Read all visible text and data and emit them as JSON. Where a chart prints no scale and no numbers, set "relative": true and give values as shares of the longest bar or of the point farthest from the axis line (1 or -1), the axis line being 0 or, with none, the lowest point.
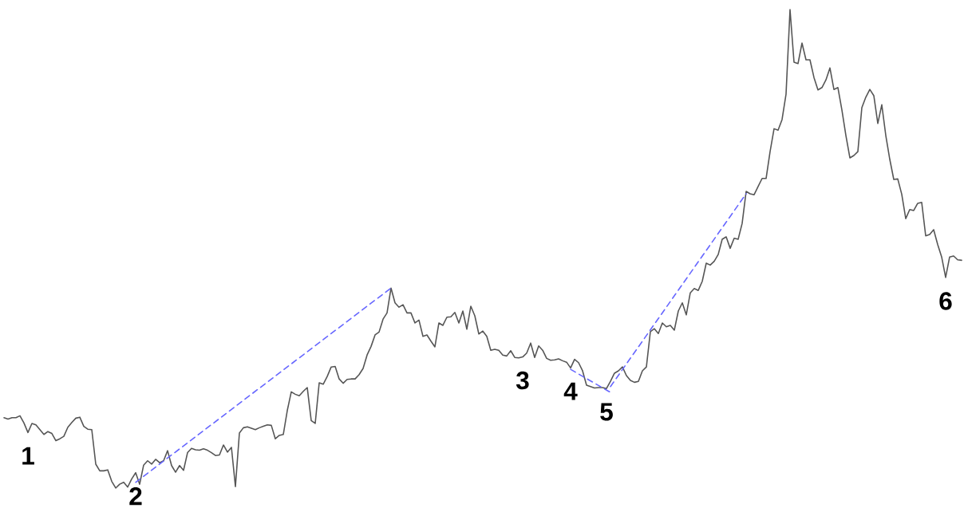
{
  "chart_data": {
    "type": "line",
    "relative": true,
    "categories": [
      null,
      null,
      null,
      null,
      null,
      null,
      null,
      null,
      null,
      null,
      null,
      null,
      null,
      null,
      null,
      null,
      null,
      null,
      null,
      null,
      null,
      null,
      null,
      null,
      null,
      null,
      null,
      null,
      null,
      null,
      null,
      null,
      null,
      null,
      null,
      null,
      null,
      null,
      null,
      null,
      null,
      null,
      null,
      null,
      null,
      null,
      null,
      null,
      null,
      null,
      null,
      null,
      null,
      null,
      null,
      null,
      null,
      null,
      null,
      null,
      null,
      null,
      null,
      null,
      null,
      null,
      null,
      null,
      null,
      null,
      null,
      null,
      null,
      null,
      null,
      null,
      null,
      null,
      null,
      null,
      null,
      null,
      null,
      null,
      null,
      null,
      null,
      null,
      null,
      null,
      null,
      null,
      null,
      null,
      null,
      null,
      null,
      null,
      null,
      null,
      null,
      null,
      null,
      null,
      null,
      null,
      null,
      null,
      null,
      null,
      null,
      null,
      null,
      null,
      null,
      null,
      null,
      null,
      null,
      null,
      null,
      null,
      null,
      null,
      null,
      null,
      null,
      null,
      null,
      null,
      null,
      null,
      null,
      null,
      null,
      null,
      null,
      null,
      null,
      null,
      null,
      null,
      null,
      null,
      null,
      null,
      null,
      null,
      null,
      null,
      null,
      null,
      null,
      null,
      null,
      null,
      null,
      null,
      null,
      null,
      null,
      null,
      null,
      null,
      null,
      null,
      null,
      null,
      null,
      null,
      null,
      null,
      null,
      null,
      null,
      null,
      null,
      null,
      null,
      null,
      null,
      null,
      null,
      null,
      null,
      null,
      null,
      null,
      null,
      null,
      null,
      null,
      null,
      null,
      null,
      null,
      null,
      null,
      null,
      null,
      null,
      null,
      null,
      null,
      null,
      null,
      null,
      null,
      null,
      null,
      null,
      null,
      null,
      null,
      null,
      null,
      null,
      null,
      null,
      null,
      null,
      null,
      null,
      null,
      null,
      null,
      null,
      null,
      null,
      null,
      null,
      null,
      null,
      null,
      null,
      null,
      null,
      null,
      null,
      null,
      null
    ],
    "series": [
      {
        "color": "#555555",
        "values": [
          0.147,
          0.144,
          0.147,
          0.147,
          0.151,
          0.136,
          0.116,
          0.135,
          0.132,
          0.122,
          0.112,
          0.118,
          0.114,
          0.099,
          0.103,
          0.108,
          0.127,
          0.137,
          0.146,
          0.148,
          0.129,
          0.123,
          0.122,
          0.05,
          0.036,
          0.036,
          0.038,
          0.014,
          0.0,
          0.008,
          0.012,
          0.002,
          0.019,
          0.032,
          0.008,
          0.048,
          0.057,
          0.05,
          0.06,
          0.053,
          0.057,
          0.078,
          0.047,
          0.033,
          0.047,
          0.037,
          0.074,
          0.083,
          0.08,
          0.079,
          0.082,
          0.079,
          0.074,
          0.068,
          0.069,
          0.09,
          0.075,
          0.085,
          0.003,
          0.115,
          0.126,
          0.128,
          0.125,
          0.122,
          0.126,
          0.129,
          0.132,
          0.131,
          0.103,
          0.11,
          0.112,
          0.162,
          0.201,
          0.196,
          0.193,
          0.202,
          0.21,
          0.141,
          0.135,
          0.22,
          0.217,
          0.233,
          0.253,
          0.254,
          0.228,
          0.219,
          0.227,
          0.228,
          0.228,
          0.237,
          0.25,
          0.278,
          0.296,
          0.32,
          0.326,
          0.353,
          0.366,
          0.418,
          0.387,
          0.378,
          0.383,
          0.366,
          0.366,
          0.345,
          0.351,
          0.317,
          0.32,
          0.307,
          0.295,
          0.345,
          0.34,
          0.357,
          0.358,
          0.367,
          0.345,
          0.37,
          0.332,
          0.38,
          0.36,
          0.322,
          0.328,
          0.317,
          0.288,
          0.29,
          0.288,
          0.278,
          0.276,
          0.287,
          0.273,
          0.272,
          0.274,
          0.282,
          0.303,
          0.273,
          0.297,
          0.288,
          0.271,
          0.267,
          0.268,
          0.27,
          0.266,
          0.263,
          0.251,
          0.269,
          0.262,
          0.245,
          0.215,
          0.212,
          0.209,
          0.21,
          0.21,
          0.208,
          0.223,
          0.24,
          0.245,
          0.253,
          0.235,
          0.225,
          0.221,
          0.223,
          0.245,
          0.253,
          0.327,
          0.333,
          0.323,
          0.345,
          0.337,
          0.34,
          0.33,
          0.37,
          0.387,
          0.362,
          0.408,
          0.417,
          0.413,
          0.432,
          0.47,
          0.466,
          0.474,
          0.488,
          0.52,
          0.525,
          0.501,
          0.522,
          0.52,
          0.553,
          0.62,
          0.615,
          0.613,
          0.63,
          0.647,
          0.647,
          0.703,
          0.751,
          0.748,
          0.77,
          0.823,
          1.0,
          0.89,
          0.887,
          0.93,
          0.895,
          0.895,
          0.858,
          0.832,
          0.837,
          0.853,
          0.878,
          0.833,
          0.837,
          0.79,
          0.737,
          0.69,
          0.695,
          0.703,
          0.795,
          0.817,
          0.833,
          0.82,
          0.762,
          0.801,
          0.737,
          0.687,
          0.645,
          0.646,
          0.614,
          0.563,
          0.582,
          0.58,
          0.595,
          0.597,
          0.527,
          0.53,
          0.54,
          0.509,
          0.483,
          0.44,
          0.483,
          0.485,
          0.477,
          0.476
        ]
      },
      {
        "type": "line",
        "color": "#6666ff",
        "line_style": "dashed",
        "values": [
          null,
          null,
          null,
          null,
          null,
          null,
          null,
          null,
          null,
          null,
          null,
          null,
          null,
          null,
          null,
          null,
          null,
          null,
          null,
          null,
          null,
          null,
          null,
          null,
          null,
          null,
          null,
          null,
          null,
          null,
          null,
          null,
          null,
          0.012,
          null,
          null,
          null,
          null,
          null,
          null,
          null,
          null,
          null,
          null,
          null,
          null,
          null,
          null,
          null,
          null,
          null,
          null,
          null,
          null,
          null,
          null,
          null,
          null,
          null,
          null,
          null,
          null,
          null,
          null,
          null,
          null,
          null,
          null,
          null,
          null,
          null,
          null,
          null,
          null,
          null,
          null,
          null,
          null,
          null,
          null,
          null,
          null,
          null,
          null,
          null,
          null,
          null,
          null,
          null,
          null,
          null,
          null,
          null,
          null,
          null,
          null,
          null,
          0.418,
          null,
          null,
          null,
          null,
          null,
          null,
          null,
          null,
          null,
          null,
          null,
          null,
          null,
          null,
          null,
          null,
          null,
          null,
          null,
          null,
          null,
          null,
          null,
          null,
          null,
          null,
          null,
          null,
          null,
          null,
          null,
          null,
          null,
          null,
          null,
          null,
          null,
          null,
          null,
          null,
          null,
          null,
          null,
          null,
          null,
          null,
          null,
          null,
          null,
          null,
          null,
          null,
          null,
          null,
          null,
          null,
          null,
          null,
          null,
          null,
          null,
          null,
          null,
          null,
          null,
          null,
          null,
          null,
          null,
          null,
          null,
          null,
          null,
          null,
          null,
          null,
          null,
          null,
          null,
          null,
          null,
          null,
          null,
          null,
          null,
          null,
          null,
          null,
          null,
          null,
          null,
          null,
          null,
          null,
          null,
          null,
          null,
          null,
          null,
          null,
          null,
          null,
          null,
          null,
          null,
          null,
          null,
          null,
          null,
          null,
          null,
          null,
          null,
          null,
          null,
          null,
          null,
          null,
          null,
          null,
          null,
          null,
          null,
          null,
          null,
          null,
          null,
          null,
          null,
          null,
          null,
          null,
          null,
          null,
          null,
          null,
          null,
          null,
          null,
          null,
          null,
          null,
          null
        ]
      },
      {
        "type": "line",
        "color": "#6666ff",
        "line_style": "dashed",
        "values": [
          null,
          null,
          null,
          null,
          null,
          null,
          null,
          null,
          null,
          null,
          null,
          null,
          null,
          null,
          null,
          null,
          null,
          null,
          null,
          null,
          null,
          null,
          null,
          null,
          null,
          null,
          null,
          null,
          null,
          null,
          null,
          null,
          null,
          null,
          null,
          null,
          null,
          null,
          null,
          null,
          null,
          null,
          null,
          null,
          null,
          null,
          null,
          null,
          null,
          null,
          null,
          null,
          null,
          null,
          null,
          null,
          null,
          null,
          null,
          null,
          null,
          null,
          null,
          null,
          null,
          null,
          null,
          null,
          null,
          null,
          null,
          null,
          null,
          null,
          null,
          null,
          null,
          null,
          null,
          null,
          null,
          null,
          null,
          null,
          null,
          null,
          null,
          null,
          null,
          null,
          null,
          null,
          null,
          null,
          null,
          null,
          null,
          null,
          null,
          null,
          null,
          null,
          null,
          null,
          null,
          null,
          null,
          null,
          null,
          null,
          null,
          null,
          null,
          null,
          null,
          null,
          null,
          null,
          null,
          null,
          null,
          null,
          null,
          null,
          null,
          null,
          null,
          null,
          null,
          null,
          null,
          null,
          null,
          null,
          null,
          null,
          null,
          null,
          null,
          null,
          null,
          null,
          0.248,
          null,
          null,
          null,
          null,
          null,
          null,
          null,
          null,
          null,
          0.2,
          null,
          null,
          null,
          null,
          null,
          null,
          null,
          null,
          null,
          null,
          null,
          null,
          null,
          null,
          null,
          null,
          null,
          null,
          null,
          null,
          null,
          null,
          null,
          null,
          null,
          null,
          null,
          null,
          null,
          null,
          null,
          null,
          null,
          null,
          null,
          null,
          null,
          null,
          null,
          null,
          null,
          null,
          null,
          null,
          null,
          null,
          null,
          null,
          null,
          null,
          null,
          null,
          null,
          null,
          null,
          null,
          null,
          null,
          null,
          null,
          null,
          null,
          null,
          null,
          null,
          null,
          null,
          null,
          null,
          null,
          null,
          null,
          null,
          null,
          null,
          null,
          null,
          null,
          null,
          null,
          null,
          null,
          null,
          null,
          null,
          null,
          null,
          null
        ]
      },
      {
        "type": "line",
        "color": "#6666ff",
        "line_style": "dashed",
        "values": [
          null,
          null,
          null,
          null,
          null,
          null,
          null,
          null,
          null,
          null,
          null,
          null,
          null,
          null,
          null,
          null,
          null,
          null,
          null,
          null,
          null,
          null,
          null,
          null,
          null,
          null,
          null,
          null,
          null,
          null,
          null,
          null,
          null,
          null,
          null,
          null,
          null,
          null,
          null,
          null,
          null,
          null,
          null,
          null,
          null,
          null,
          null,
          null,
          null,
          null,
          null,
          null,
          null,
          null,
          null,
          null,
          null,
          null,
          null,
          null,
          null,
          null,
          null,
          null,
          null,
          null,
          null,
          null,
          null,
          null,
          null,
          null,
          null,
          null,
          null,
          null,
          null,
          null,
          null,
          null,
          null,
          null,
          null,
          null,
          null,
          null,
          null,
          null,
          null,
          null,
          null,
          null,
          null,
          null,
          null,
          null,
          null,
          null,
          null,
          null,
          null,
          null,
          null,
          null,
          null,
          null,
          null,
          null,
          null,
          null,
          null,
          null,
          null,
          null,
          null,
          null,
          null,
          null,
          null,
          null,
          null,
          null,
          null,
          null,
          null,
          null,
          null,
          null,
          null,
          null,
          null,
          null,
          null,
          null,
          null,
          null,
          null,
          null,
          null,
          null,
          null,
          null,
          null,
          null,
          null,
          null,
          null,
          null,
          null,
          null,
          null,
          null,
          0.212,
          null,
          null,
          null,
          null,
          null,
          null,
          null,
          null,
          null,
          null,
          null,
          null,
          null,
          null,
          null,
          null,
          null,
          null,
          null,
          null,
          null,
          null,
          null,
          null,
          null,
          null,
          null,
          null,
          null,
          null,
          null,
          null,
          null,
          0.615,
          null,
          null,
          null,
          null,
          null,
          null,
          null,
          null,
          null,
          null,
          null,
          null,
          null,
          null,
          null,
          null,
          null,
          null,
          null,
          null,
          null,
          null,
          null,
          null,
          null,
          null,
          null,
          null,
          null,
          null,
          null,
          null,
          null,
          null,
          null,
          null,
          null,
          null,
          null,
          null,
          null,
          null,
          null,
          null,
          null,
          null,
          null,
          null,
          null,
          null,
          null,
          null,
          null,
          null
        ]
      }
    ],
    "annotations": [
      {
        "text": "1",
        "y": 0.116
      },
      {
        "text": "2",
        "y": 0.032
      },
      {
        "text": "3",
        "y": 0.274
      },
      {
        "text": "4",
        "y": 0.251
      },
      {
        "text": "5",
        "y": 0.208
      },
      {
        "text": "6",
        "y": 0.44
      }
    ]
  }
}
